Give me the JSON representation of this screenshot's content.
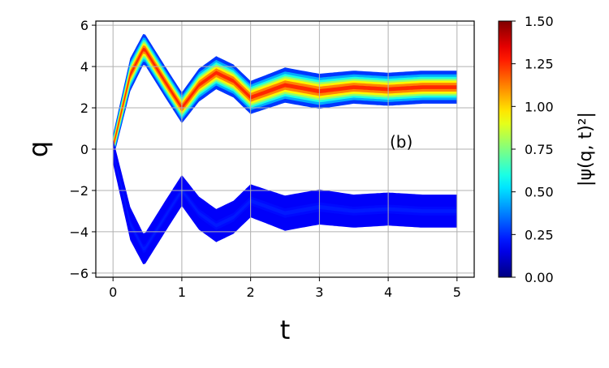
{
  "chart_data": {
    "type": "heatmap",
    "title": "",
    "panel_label": "(b)",
    "xlabel": "t",
    "ylabel": "q",
    "xlim": [
      -0.25,
      5.25
    ],
    "ylim": [
      -6.2,
      6.2
    ],
    "x_ticks": [
      0,
      1,
      2,
      3,
      4,
      5
    ],
    "x_tick_labels": [
      "0",
      "1",
      "2",
      "3",
      "4",
      "5"
    ],
    "y_ticks": [
      6,
      4,
      2,
      0,
      -2,
      -4,
      -6
    ],
    "y_tick_labels": [
      "6",
      "4",
      "2",
      "0",
      "−2",
      "−4",
      "−6"
    ],
    "grid": true,
    "colorbar": {
      "label": "|ψ(q, t)²|",
      "range": [
        0.0,
        1.5
      ],
      "ticks": [
        0.0,
        0.25,
        0.5,
        0.75,
        1.0,
        1.25,
        1.5
      ],
      "tick_labels": [
        "0.00",
        "0.25",
        "0.50",
        "0.75",
        "1.00",
        "1.25",
        "1.50"
      ],
      "colormap": "jet"
    },
    "series": [
      {
        "branch": "upper",
        "t": [
          0,
          0.25,
          0.45,
          0.75,
          1.0,
          1.25,
          1.5,
          1.75,
          2.0,
          2.5,
          3.0,
          3.5,
          4.0,
          4.5,
          5.0
        ],
        "center_q": [
          0.1,
          3.6,
          4.9,
          3.3,
          2.0,
          3.1,
          3.7,
          3.3,
          2.5,
          3.1,
          2.8,
          3.0,
          2.9,
          3.0,
          3.0
        ],
        "peak_density": [
          1.0,
          1.3,
          1.45,
          1.4,
          1.35,
          1.35,
          1.35,
          1.3,
          1.3,
          1.3,
          1.25,
          1.25,
          1.25,
          1.25,
          1.25
        ],
        "half_width_q": [
          0.6,
          0.8,
          0.75,
          0.75,
          0.75,
          0.8,
          0.8,
          0.8,
          0.8,
          0.85,
          0.85,
          0.8,
          0.8,
          0.8,
          0.8
        ]
      },
      {
        "branch": "lower",
        "t": [
          0,
          0.25,
          0.45,
          0.75,
          1.0,
          1.25,
          1.5,
          1.75,
          2.0,
          2.5,
          3.0,
          3.5,
          4.0,
          4.5,
          5.0
        ],
        "center_q": [
          -0.1,
          -3.6,
          -4.9,
          -3.3,
          -2.0,
          -3.1,
          -3.7,
          -3.3,
          -2.5,
          -3.1,
          -2.8,
          -3.0,
          -2.9,
          -3.0,
          -3.0
        ],
        "peak_density": [
          0.3,
          0.28,
          0.27,
          0.26,
          0.25,
          0.24,
          0.24,
          0.23,
          0.23,
          0.22,
          0.22,
          0.21,
          0.21,
          0.21,
          0.21
        ],
        "half_width_q": [
          0.6,
          0.8,
          0.75,
          0.75,
          0.75,
          0.8,
          0.8,
          0.8,
          0.8,
          0.85,
          0.85,
          0.8,
          0.8,
          0.8,
          0.8
        ]
      }
    ]
  }
}
